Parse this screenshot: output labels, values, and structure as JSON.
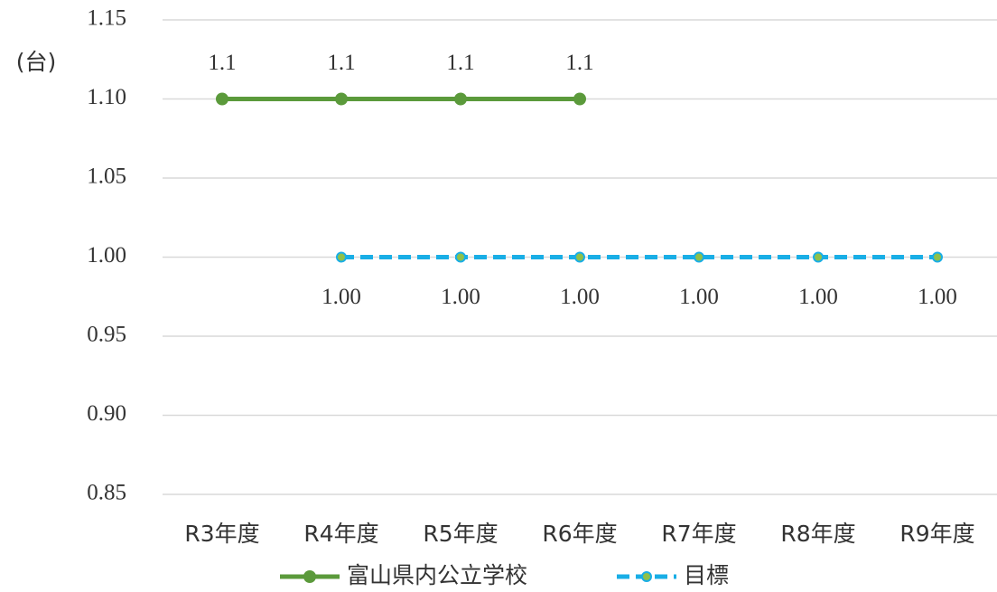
{
  "chart_data": {
    "type": "line",
    "y_label": "(台)",
    "categories": [
      "R3年度",
      "R4年度",
      "R5年度",
      "R6年度",
      "R7年度",
      "R8年度",
      "R9年度"
    ],
    "series": [
      {
        "name": "富山県内公立学校",
        "color": "#5b9a3b",
        "dashed": false,
        "marker_color": "#5b9a3b",
        "values": [
          1.1,
          1.1,
          1.1,
          1.1,
          null,
          null,
          null
        ]
      },
      {
        "name": "目標",
        "color": "#19aee6",
        "dashed": true,
        "marker_color": "#8fc04a",
        "values": [
          null,
          1,
          1,
          1,
          1,
          1,
          1
        ],
        "value_labels": [
          null,
          "1.00",
          "1.00",
          "1.00",
          "1.00",
          "1.00",
          "1.00"
        ]
      }
    ],
    "ylim": [
      0.85,
      1.15
    ],
    "yticks": [
      1.15,
      {
        "value": 1.1,
        "label": "1.10"
      },
      1.05,
      {
        "value": 1,
        "label": "1.00"
      },
      0.95,
      {
        "value": 0.9,
        "label": "0.90"
      },
      0.85
    ],
    "grid": true,
    "legend": "bottom"
  }
}
